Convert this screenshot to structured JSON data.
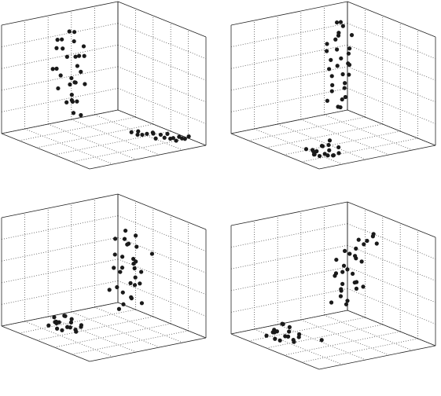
{
  "chart_data": [
    {
      "type": "scatter3d",
      "color": "#1a1a1a",
      "grid": true,
      "xlim": [
        0,
        1
      ],
      "ylim": [
        0,
        1
      ],
      "zlim": [
        0,
        1
      ],
      "xticks": [
        0,
        0.2,
        0.4,
        0.6,
        0.8,
        1
      ],
      "yticks": [
        0,
        0.2,
        0.4,
        0.6,
        0.8,
        1
      ],
      "zticks": [
        0,
        0.2,
        0.4,
        0.6,
        0.8,
        1
      ],
      "x": [
        0.45,
        0.52,
        0.4,
        0.58,
        0.47,
        0.55,
        0.38,
        0.5,
        0.43,
        0.61,
        0.49,
        0.44,
        0.56,
        0.41,
        0.53,
        0.47,
        0.59,
        0.36,
        0.51,
        0.46,
        0.54,
        0.42,
        0.48,
        0.57,
        0.39,
        0.5,
        0.45,
        0.62,
        0.44,
        0.52,
        0.3,
        0.28,
        0.26,
        0.25,
        0.23,
        0.22,
        0.2,
        0.19,
        0.18,
        0.16,
        0.15,
        0.14,
        0.12,
        0.11,
        0.27,
        0.21,
        0.17,
        0.13
      ],
      "y": [
        0.1,
        0.05,
        0.14,
        0.08,
        0.18,
        0.03,
        0.12,
        0.2,
        0.07,
        0.11,
        0.02,
        0.16,
        0.09,
        0.06,
        0.22,
        0.13,
        0.04,
        0.1,
        0.15,
        0.08,
        0.19,
        0.01,
        0.12,
        0.17,
        0.05,
        0.24,
        0.09,
        0.14,
        0.03,
        0.11,
        0.55,
        0.6,
        0.62,
        0.66,
        0.7,
        0.72,
        0.75,
        0.78,
        0.8,
        0.84,
        0.86,
        0.88,
        0.92,
        0.95,
        0.58,
        0.68,
        0.82,
        0.9
      ],
      "z": [
        0.85,
        0.78,
        0.72,
        0.8,
        0.66,
        0.7,
        0.62,
        0.58,
        0.75,
        0.55,
        0.68,
        0.5,
        0.47,
        0.6,
        0.44,
        0.4,
        0.52,
        0.35,
        0.3,
        0.42,
        0.27,
        0.33,
        0.22,
        0.25,
        0.18,
        0.14,
        0.1,
        0.38,
        0.83,
        0.64,
        0.04,
        0.06,
        0.03,
        0.05,
        0.07,
        0.02,
        0.06,
        0.04,
        0.08,
        0.05,
        0.03,
        0.07,
        0.06,
        0.09,
        0.02,
        0.05,
        0.04,
        0.06
      ]
    },
    {
      "type": "scatter3d",
      "color": "#1a1a1a",
      "grid": true,
      "xlim": [
        0,
        1
      ],
      "ylim": [
        0,
        1
      ],
      "zlim": [
        0,
        1
      ],
      "xticks": [
        0,
        0.2,
        0.4,
        0.6,
        0.8,
        1
      ],
      "yticks": [
        0,
        0.2,
        0.4,
        0.6,
        0.8,
        1
      ],
      "zticks": [
        0,
        0.2,
        0.4,
        0.6,
        0.8,
        1
      ],
      "x": [
        0.3,
        0.25,
        0.35,
        0.28,
        0.33,
        0.22,
        0.38,
        0.27,
        0.31,
        0.24,
        0.36,
        0.29,
        0.26,
        0.34,
        0.21,
        0.32,
        0.37,
        0.23,
        0.3,
        0.28,
        0.35,
        0.26,
        0.33,
        0.29,
        0.4,
        0.25,
        0.31,
        0.27,
        0.2,
        0.34,
        0.8,
        0.84,
        0.76,
        0.88,
        0.82,
        0.78,
        0.86,
        0.74,
        0.9,
        0.81,
        0.79,
        0.85,
        0.77,
        0.83,
        0.72,
        0.87,
        0.8,
        0.75
      ],
      "y": [
        0.32,
        0.28,
        0.36,
        0.25,
        0.3,
        0.34,
        0.27,
        0.38,
        0.29,
        0.33,
        0.24,
        0.31,
        0.35,
        0.26,
        0.3,
        0.37,
        0.28,
        0.32,
        0.22,
        0.34,
        0.29,
        0.31,
        0.26,
        0.36,
        0.3,
        0.27,
        0.33,
        0.25,
        0.15,
        0.35,
        0.8,
        0.76,
        0.84,
        0.78,
        0.86,
        0.74,
        0.82,
        0.88,
        0.72,
        0.79,
        0.83,
        0.75,
        0.81,
        0.7,
        0.85,
        0.77,
        0.9,
        0.79
      ],
      "z": [
        0.98,
        0.92,
        0.88,
        0.95,
        0.82,
        0.85,
        0.78,
        0.75,
        0.72,
        0.68,
        0.7,
        0.64,
        0.6,
        0.62,
        0.56,
        0.52,
        0.55,
        0.48,
        0.45,
        0.42,
        0.4,
        0.36,
        0.33,
        0.3,
        0.27,
        0.24,
        0.2,
        0.17,
        0.5,
        0.9,
        0.03,
        0.05,
        0.02,
        0.06,
        0.04,
        0.08,
        0.03,
        0.05,
        0.07,
        0.1,
        0.12,
        0.02,
        0.06,
        0.04,
        0.09,
        0.03,
        0.05,
        0.14
      ]
    },
    {
      "type": "scatter3d",
      "color": "#1a1a1a",
      "grid": true,
      "xlim": [
        0,
        1
      ],
      "ylim": [
        0,
        1
      ],
      "zlim": [
        0,
        1
      ],
      "xticks": [
        0,
        0.2,
        0.4,
        0.6,
        0.8,
        1
      ],
      "yticks": [
        0,
        0.2,
        0.4,
        0.6,
        0.8,
        1
      ],
      "zticks": [
        0,
        0.2,
        0.4,
        0.6,
        0.8,
        1
      ],
      "x": [
        0.2,
        0.15,
        0.25,
        0.18,
        0.23,
        0.12,
        0.28,
        0.17,
        0.21,
        0.14,
        0.26,
        0.19,
        0.16,
        0.24,
        0.11,
        0.22,
        0.27,
        0.13,
        0.2,
        0.18,
        0.25,
        0.16,
        0.23,
        0.19,
        0.3,
        0.15,
        0.21,
        0.17,
        0.1,
        0.24,
        0.7,
        0.74,
        0.66,
        0.78,
        0.72,
        0.68,
        0.76,
        0.64,
        0.8,
        0.71,
        0.69,
        0.75,
        0.67,
        0.73,
        0.62,
        0.77,
        0.7,
        0.82
      ],
      "y": [
        0.35,
        0.4,
        0.3,
        0.45,
        0.38,
        0.28,
        0.42,
        0.33,
        0.48,
        0.36,
        0.31,
        0.44,
        0.39,
        0.27,
        0.41,
        0.34,
        0.5,
        0.37,
        0.29,
        0.43,
        0.32,
        0.46,
        0.36,
        0.4,
        0.3,
        0.47,
        0.34,
        0.38,
        0.52,
        0.33,
        0.35,
        0.31,
        0.39,
        0.33,
        0.41,
        0.29,
        0.37,
        0.43,
        0.27,
        0.34,
        0.38,
        0.3,
        0.36,
        0.25,
        0.4,
        0.32,
        0.45,
        0.36
      ],
      "z": [
        0.82,
        0.78,
        0.74,
        0.7,
        0.76,
        0.66,
        0.62,
        0.68,
        0.58,
        0.55,
        0.6,
        0.5,
        0.52,
        0.46,
        0.44,
        0.48,
        0.4,
        0.38,
        0.42,
        0.34,
        0.3,
        0.36,
        0.26,
        0.22,
        0.28,
        0.18,
        0.14,
        0.2,
        0.64,
        0.1,
        0.04,
        0.08,
        0.02,
        0.1,
        0.06,
        0.12,
        0.03,
        0.07,
        0.05,
        0.14,
        0.09,
        0.02,
        0.11,
        0.06,
        0.04,
        0.08,
        0.03,
        0.16
      ]
    },
    {
      "type": "scatter3d",
      "color": "#1a1a1a",
      "grid": true,
      "xlim": [
        0,
        1
      ],
      "ylim": [
        0,
        1
      ],
      "zlim": [
        0,
        1
      ],
      "xticks": [
        0,
        0.2,
        0.4,
        0.6,
        0.8,
        1
      ],
      "yticks": [
        0,
        0.2,
        0.4,
        0.6,
        0.8,
        1
      ],
      "zticks": [
        0,
        0.2,
        0.4,
        0.6,
        0.8,
        1
      ],
      "x": [
        0.25,
        0.2,
        0.3,
        0.23,
        0.28,
        0.17,
        0.33,
        0.22,
        0.26,
        0.19,
        0.31,
        0.24,
        0.21,
        0.29,
        0.16,
        0.27,
        0.32,
        0.18,
        0.25,
        0.23,
        0.3,
        0.21,
        0.28,
        0.24,
        0.35,
        0.2,
        0.26,
        0.22,
        0.15,
        0.29,
        0.8,
        0.84,
        0.76,
        0.88,
        0.82,
        0.78,
        0.86,
        0.74,
        0.9,
        0.81,
        0.79,
        0.85,
        0.77,
        0.83,
        0.72,
        0.87,
        0.8,
        0.6
      ],
      "y": [
        0.3,
        0.35,
        0.27,
        0.4,
        0.33,
        0.25,
        0.38,
        0.29,
        0.44,
        0.31,
        0.28,
        0.42,
        0.36,
        0.24,
        0.39,
        0.3,
        0.55,
        0.34,
        0.26,
        0.6,
        0.32,
        0.5,
        0.37,
        0.65,
        0.28,
        0.45,
        0.33,
        0.58,
        0.36,
        0.31,
        0.35,
        0.31,
        0.39,
        0.33,
        0.41,
        0.29,
        0.37,
        0.43,
        0.27,
        0.34,
        0.38,
        0.3,
        0.36,
        0.25,
        0.4,
        0.32,
        0.45,
        0.5
      ],
      "z": [
        0.7,
        0.66,
        0.62,
        0.75,
        0.58,
        0.64,
        0.55,
        0.52,
        0.68,
        0.48,
        0.5,
        0.45,
        0.42,
        0.46,
        0.38,
        0.4,
        0.9,
        0.35,
        0.32,
        0.95,
        0.3,
        0.85,
        0.27,
        0.88,
        0.24,
        0.8,
        0.22,
        0.92,
        0.6,
        0.36,
        0.05,
        0.09,
        0.02,
        0.12,
        0.07,
        0.14,
        0.03,
        0.08,
        0.05,
        0.16,
        0.1,
        0.02,
        0.13,
        0.06,
        0.04,
        0.09,
        0.03,
        0.02
      ]
    }
  ]
}
